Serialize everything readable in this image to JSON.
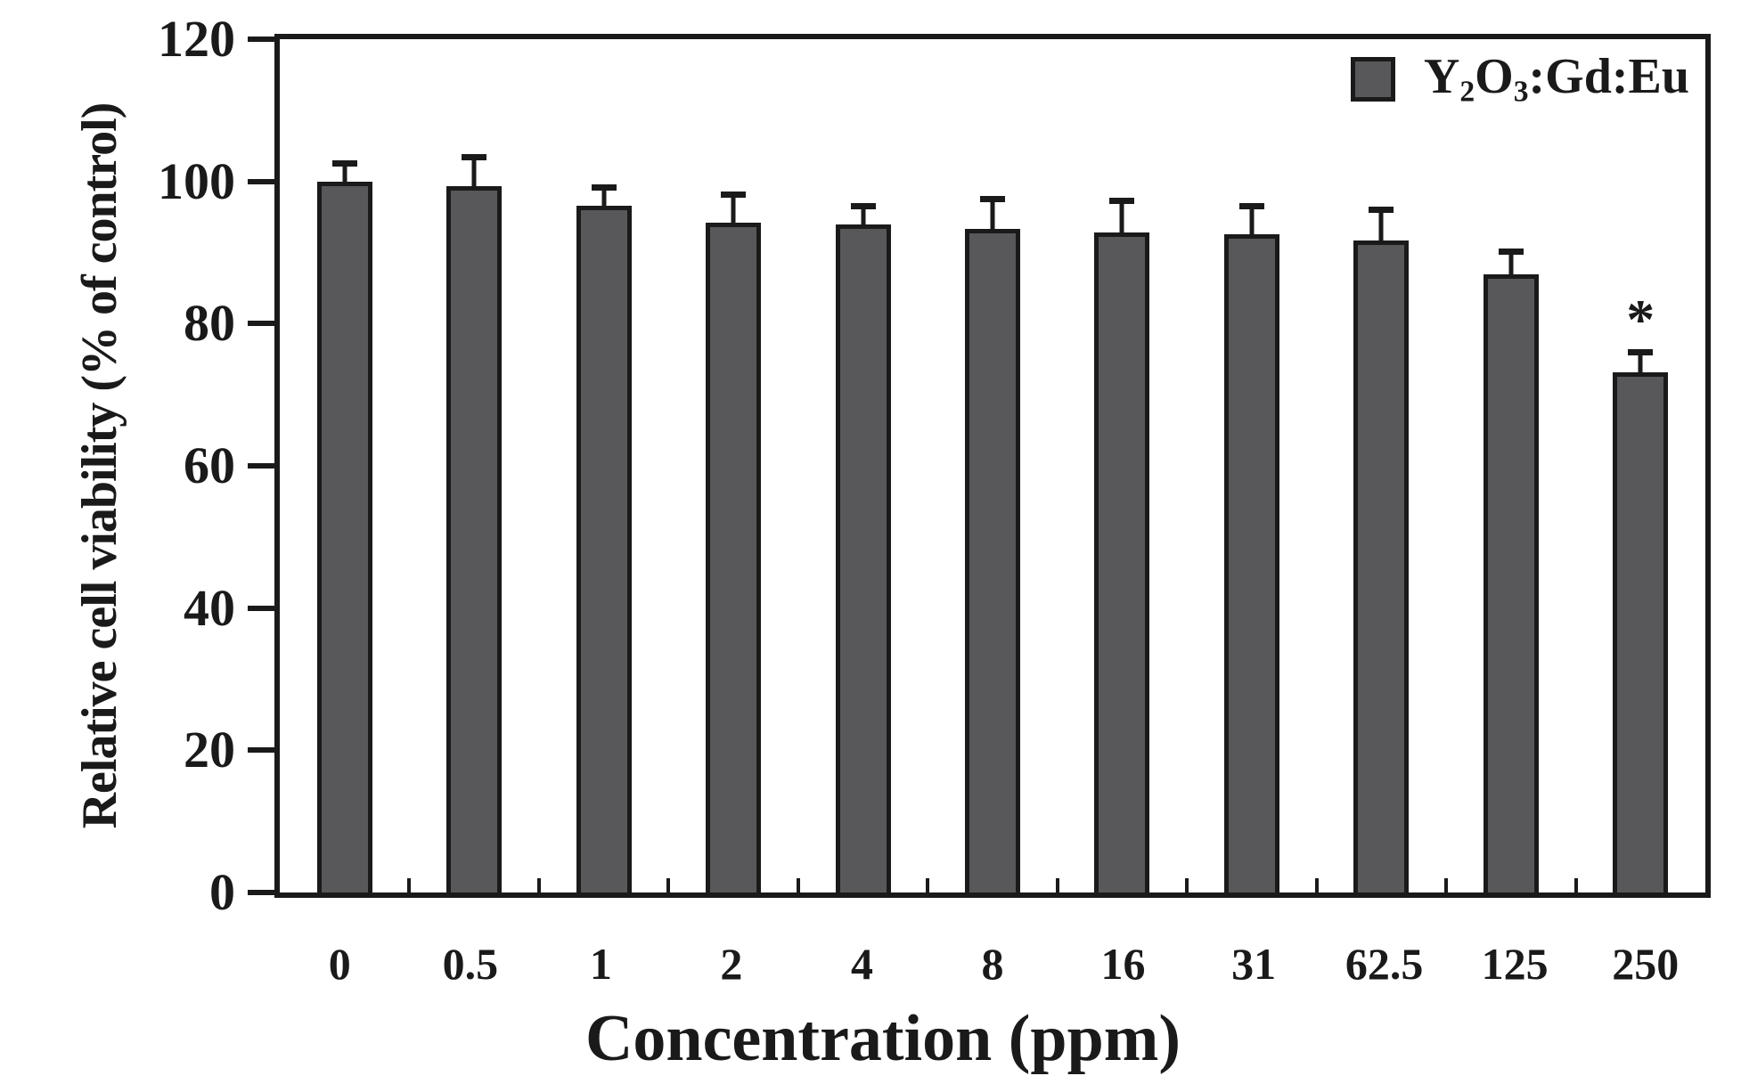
{
  "figure": {
    "background": "#ffffff",
    "frame_color": "#1a1a1a"
  },
  "chart_data": {
    "type": "bar",
    "title": "",
    "xlabel": "Concentration (ppm)",
    "ylabel": "Relative cell viability (% of control)",
    "categories": [
      "0",
      "0.5",
      "1",
      "2",
      "4",
      "8",
      "16",
      "31",
      "62.5",
      "125",
      "250"
    ],
    "series": [
      {
        "name": "Y2O3:Gd:Eu",
        "values": [
          100.0,
          99.3,
          96.6,
          94.2,
          94.0,
          93.3,
          92.8,
          92.6,
          91.7,
          86.9,
          73.1
        ],
        "errors_up": [
          2.9,
          4.4,
          2.8,
          4.3,
          2.8,
          4.5,
          4.8,
          4.2,
          4.6,
          3.6,
          3.2
        ],
        "significance": [
          "",
          "",
          "",
          "",
          "",
          "",
          "",
          "",
          "",
          "",
          "*"
        ]
      }
    ],
    "ylim": [
      0,
      120
    ],
    "yticks": [
      0,
      20,
      40,
      60,
      80,
      100,
      120
    ],
    "grid": false,
    "legend_position": "top-right",
    "bar_color": "#58585a",
    "bar_edge_color": "#1a1a1a",
    "error_bar_color": "#1a1a1a"
  },
  "legend": {
    "label_plain": "Y2O3:Gd:Eu",
    "parts": [
      {
        "text": "Y"
      },
      {
        "sub": "2"
      },
      {
        "text": "O"
      },
      {
        "sub": "3"
      },
      {
        "text": ":Gd:Eu"
      }
    ]
  },
  "annotations": {
    "significance_marker": "*"
  }
}
